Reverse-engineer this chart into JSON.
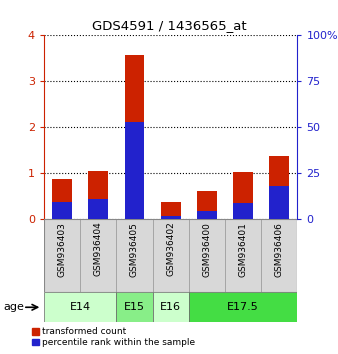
{
  "title": "GDS4591 / 1436565_at",
  "samples": [
    "GSM936403",
    "GSM936404",
    "GSM936405",
    "GSM936402",
    "GSM936400",
    "GSM936401",
    "GSM936406"
  ],
  "red_values": [
    0.88,
    1.05,
    3.58,
    0.38,
    0.62,
    1.03,
    1.38
  ],
  "blue_values_pct": [
    9.5,
    11.25,
    53.0,
    2.0,
    4.5,
    8.75,
    18.0
  ],
  "age_groups": [
    {
      "label": "E14",
      "start": 0,
      "end": 2,
      "color": "#ccffcc"
    },
    {
      "label": "E15",
      "start": 2,
      "end": 3,
      "color": "#88ee88"
    },
    {
      "label": "E16",
      "start": 3,
      "end": 4,
      "color": "#ccffcc"
    },
    {
      "label": "E17.5",
      "start": 4,
      "end": 7,
      "color": "#44dd44"
    }
  ],
  "ylim_left": [
    0,
    4
  ],
  "ylim_right": [
    0,
    100
  ],
  "yticks_left": [
    0,
    1,
    2,
    3,
    4
  ],
  "yticks_right": [
    0,
    25,
    50,
    75,
    100
  ],
  "red_color": "#cc2200",
  "blue_color": "#2222cc",
  "bg_color": "#d8d8d8",
  "legend_red": "transformed count",
  "legend_blue": "percentile rank within the sample"
}
